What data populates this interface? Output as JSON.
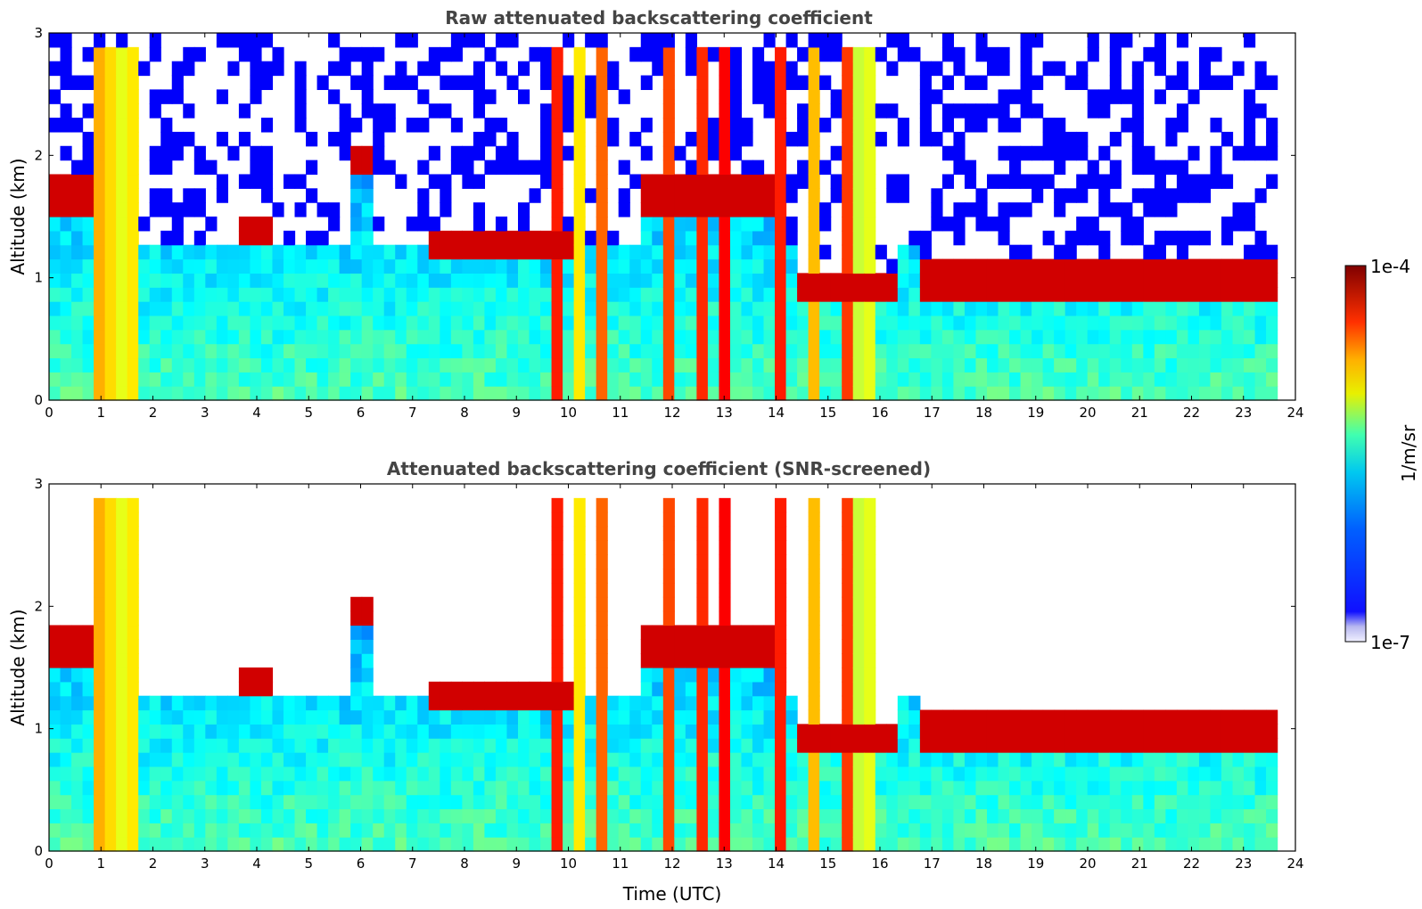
{
  "chart_data": [
    {
      "type": "heatmap",
      "title": "Raw attenuated backscattering coefficient",
      "ylabel": "Altitude (km)",
      "xlabel": "",
      "xlim": [
        0,
        24
      ],
      "ylim": [
        0,
        3
      ],
      "xticks": [
        "0",
        "1",
        "2",
        "3",
        "4",
        "5",
        "6",
        "7",
        "8",
        "9",
        "10",
        "11",
        "12",
        "13",
        "14",
        "15",
        "16",
        "17",
        "18",
        "19",
        "20",
        "21",
        "22",
        "23",
        "24"
      ],
      "yticks": [
        "0",
        "1",
        "2",
        "3"
      ],
      "data_end_time": 23.65,
      "cloud_layers": [
        {
          "t_start": 0.0,
          "t_end": 0.8,
          "altitude": 1.7
        },
        {
          "t_start": 3.6,
          "t_end": 4.4,
          "altitude": 1.4
        },
        {
          "t_start": 5.8,
          "t_end": 6.2,
          "altitude": 1.95
        },
        {
          "t_start": 7.3,
          "t_end": 10.2,
          "altitude": 1.25
        },
        {
          "t_start": 11.5,
          "t_end": 14.0,
          "altitude": 1.7
        },
        {
          "t_start": 14.3,
          "t_end": 16.4,
          "altitude": 0.9
        },
        {
          "t_start": 16.8,
          "t_end": 23.6,
          "altitude": 0.95
        }
      ],
      "screened": false
    },
    {
      "type": "heatmap",
      "title": "Attenuated backscattering coefficient (SNR-screened)",
      "ylabel": "Altitude (km)",
      "xlabel": "Time (UTC)",
      "xlim": [
        0,
        24
      ],
      "ylim": [
        0,
        3
      ],
      "xticks": [
        "0",
        "1",
        "2",
        "3",
        "4",
        "5",
        "6",
        "7",
        "8",
        "9",
        "10",
        "11",
        "12",
        "13",
        "14",
        "15",
        "16",
        "17",
        "18",
        "19",
        "20",
        "21",
        "22",
        "23",
        "24"
      ],
      "yticks": [
        "0",
        "1",
        "2",
        "3"
      ],
      "data_end_time": 23.65,
      "screened": true
    }
  ],
  "colorbar": {
    "label": "1/m/sr",
    "max_label": "1e-4",
    "min_label": "1e-7",
    "colormap": [
      "#f0f0ff",
      "#0000ff",
      "#00bfff",
      "#00ffa0",
      "#ffff00",
      "#ff8c00",
      "#ff0000",
      "#800000"
    ]
  }
}
